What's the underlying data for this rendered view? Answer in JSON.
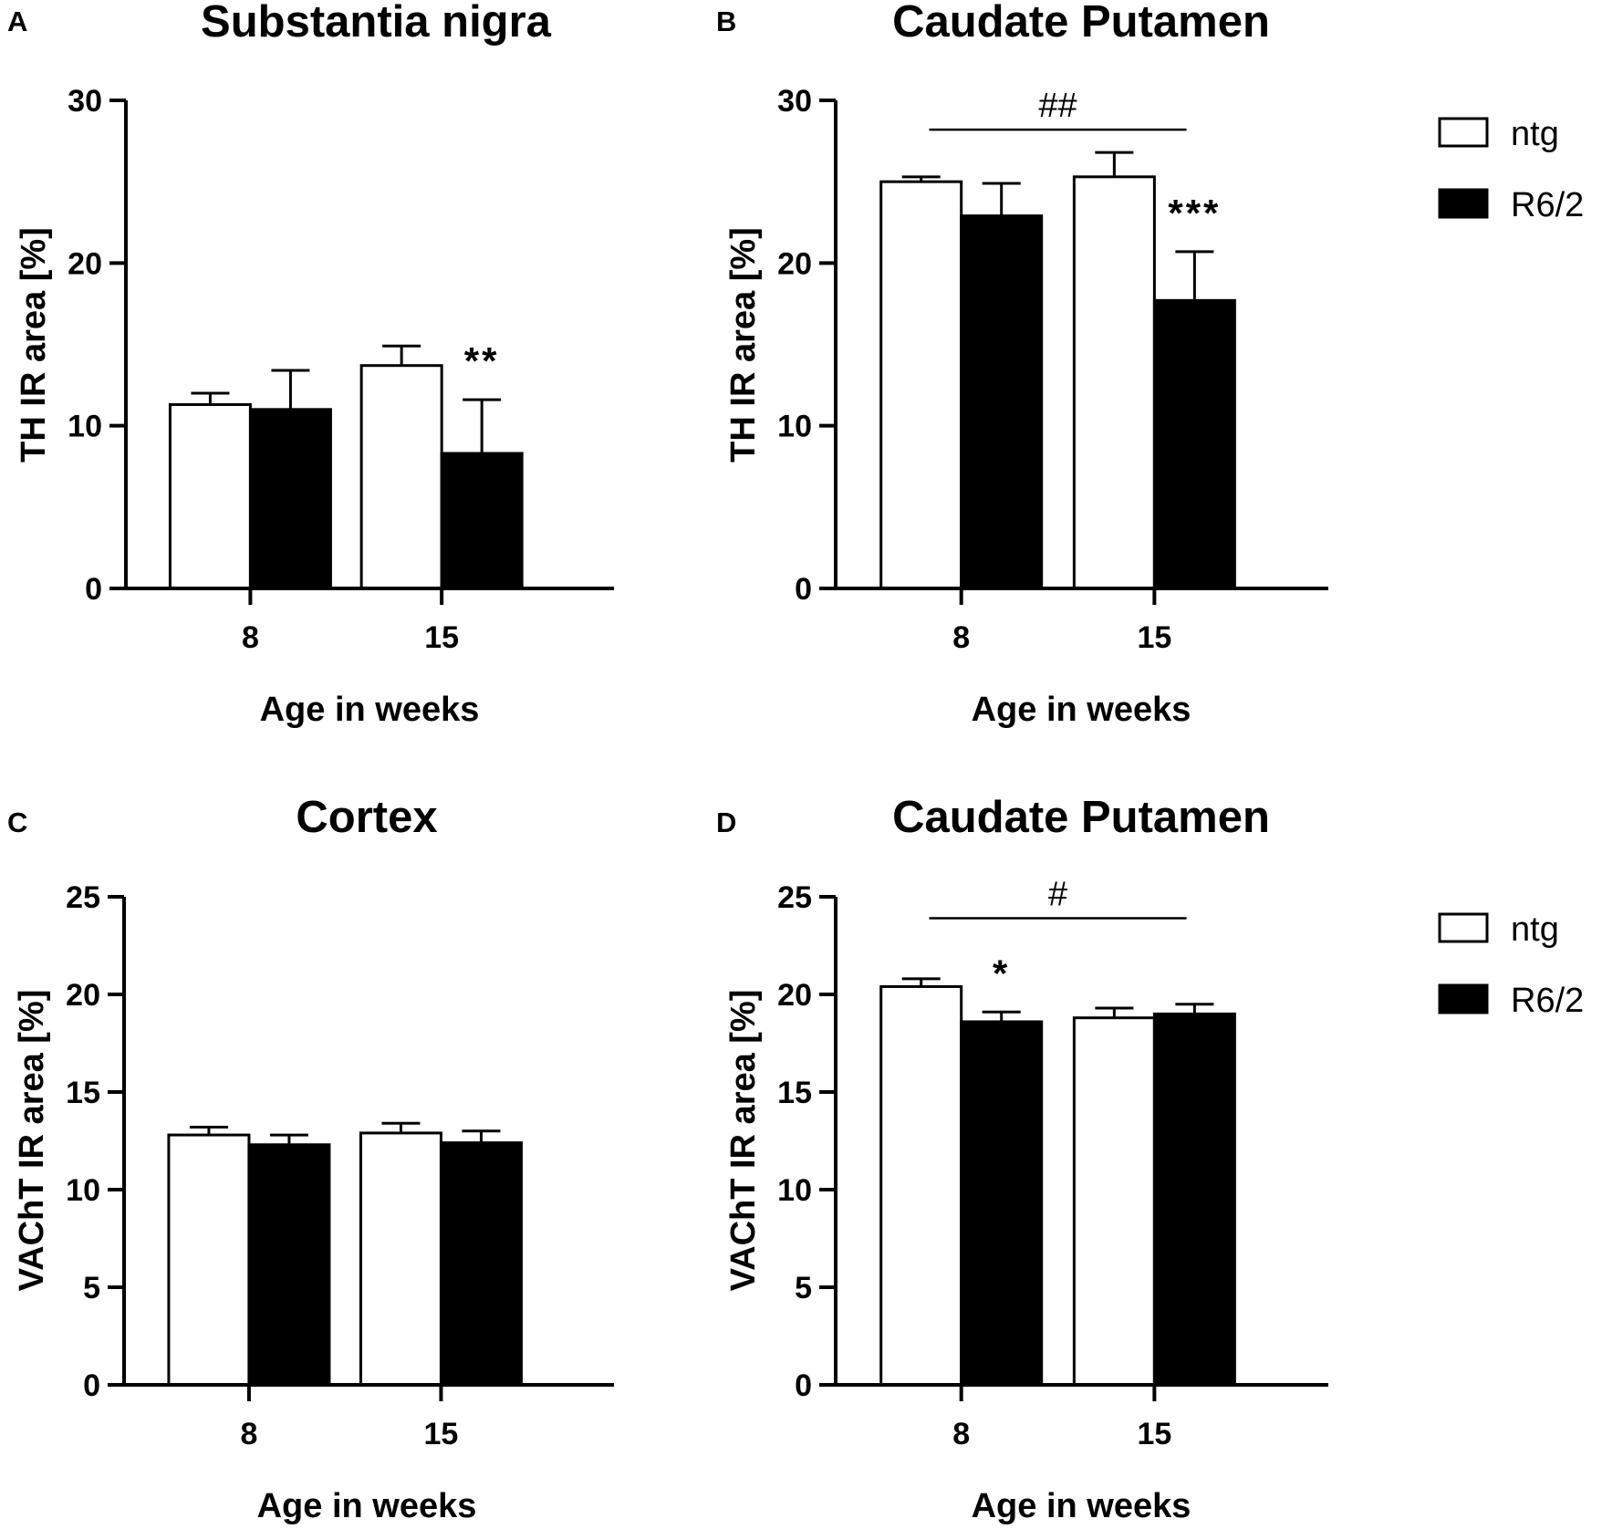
{
  "figure": {
    "domain": "Chart"
  },
  "legend_groups": [
    "ntg",
    "R6/2"
  ],
  "colors": {
    "ntg": "#ffffff",
    "R6/2": "#000000",
    "axis": "#000000"
  },
  "chart_data": [
    {
      "type": "bar",
      "panel_letter": "A",
      "title": "Substantia nigra",
      "xlabel": "Age in weeks",
      "ylabel": "TH IR area [%]",
      "categories": [
        "8",
        "15"
      ],
      "ylim": [
        0,
        30
      ],
      "yticks": [
        0,
        10,
        20,
        30
      ],
      "series": [
        {
          "name": "ntg",
          "values": [
            11.3,
            13.7
          ],
          "errors": [
            0.7,
            1.2
          ]
        },
        {
          "name": "R6/2",
          "values": [
            11.0,
            8.3
          ],
          "errors": [
            2.4,
            3.3
          ]
        }
      ],
      "annotations": [
        {
          "text": "**",
          "category": 1,
          "series": 1
        }
      ],
      "brackets": [],
      "legend": false
    },
    {
      "type": "bar",
      "panel_letter": "B",
      "title": "Caudate Putamen",
      "xlabel": "Age in weeks",
      "ylabel": "TH IR area [%]",
      "categories": [
        "8",
        "15"
      ],
      "ylim": [
        0,
        30
      ],
      "yticks": [
        0,
        10,
        20,
        30
      ],
      "series": [
        {
          "name": "ntg",
          "values": [
            25.0,
            25.3
          ],
          "errors": [
            0.3,
            1.5
          ]
        },
        {
          "name": "R6/2",
          "values": [
            22.9,
            17.7
          ],
          "errors": [
            2.0,
            3.0
          ]
        }
      ],
      "annotations": [
        {
          "text": "***",
          "category": 1,
          "series": 1
        }
      ],
      "brackets": [
        {
          "text": "##",
          "from": 0,
          "to": 1,
          "y": 28.2
        }
      ],
      "legend": true
    },
    {
      "type": "bar",
      "panel_letter": "C",
      "title": "Cortex",
      "xlabel": "Age in weeks",
      "ylabel": "VAChT IR area [%]",
      "categories": [
        "8",
        "15"
      ],
      "ylim": [
        0,
        25
      ],
      "yticks": [
        0,
        5,
        10,
        15,
        20,
        25
      ],
      "series": [
        {
          "name": "ntg",
          "values": [
            12.8,
            12.9
          ],
          "errors": [
            0.4,
            0.5
          ]
        },
        {
          "name": "R6/2",
          "values": [
            12.3,
            12.4
          ],
          "errors": [
            0.5,
            0.6
          ]
        }
      ],
      "annotations": [],
      "brackets": [],
      "legend": false
    },
    {
      "type": "bar",
      "panel_letter": "D",
      "title": "Caudate Putamen",
      "xlabel": "Age in weeks",
      "ylabel": "VAChT IR area [%]",
      "categories": [
        "8",
        "15"
      ],
      "ylim": [
        0,
        25
      ],
      "yticks": [
        0,
        5,
        10,
        15,
        20,
        25
      ],
      "series": [
        {
          "name": "ntg",
          "values": [
            20.4,
            18.8
          ],
          "errors": [
            0.4,
            0.5
          ]
        },
        {
          "name": "R6/2",
          "values": [
            18.6,
            19.0
          ],
          "errors": [
            0.5,
            0.5
          ]
        }
      ],
      "annotations": [
        {
          "text": "*",
          "category": 0,
          "series": 1
        }
      ],
      "brackets": [
        {
          "text": "#",
          "from": 0,
          "to": 1,
          "y": 23.9
        }
      ],
      "legend": true
    }
  ]
}
